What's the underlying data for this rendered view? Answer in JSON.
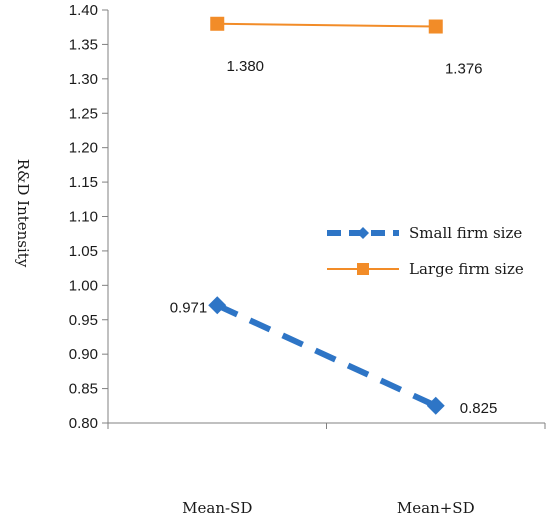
{
  "chart_data": {
    "type": "line",
    "title": "",
    "xlabel": "",
    "ylabel": "R&D Intensity",
    "categories": [
      "Mean-SD",
      "Mean+SD"
    ],
    "ylim": [
      0.8,
      1.4
    ],
    "ytick_step": 0.05,
    "yticks": [
      "0.80",
      "0.85",
      "0.90",
      "0.95",
      "1.00",
      "1.05",
      "1.10",
      "1.15",
      "1.20",
      "1.25",
      "1.30",
      "1.35",
      "1.40"
    ],
    "grid": false,
    "legend_position": "right",
    "series": [
      {
        "name": "Small firm size",
        "values": [
          0.971,
          0.825
        ],
        "labels": [
          "0.971",
          "0.825"
        ],
        "color": "#2E75C6",
        "line_style": "dashed",
        "marker": "diamond"
      },
      {
        "name": "Large firm size",
        "values": [
          1.38,
          1.376
        ],
        "labels": [
          "1.380",
          "1.376"
        ],
        "color": "#F28C28",
        "line_style": "solid",
        "marker": "square"
      }
    ]
  }
}
